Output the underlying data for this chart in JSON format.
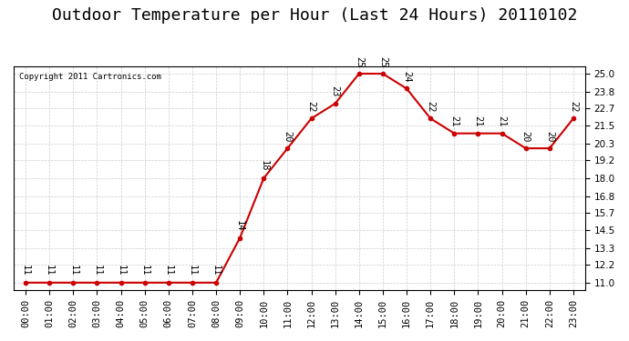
{
  "title": "Outdoor Temperature per Hour (Last 24 Hours) 20110102",
  "copyright_text": "Copyright 2011 Cartronics.com",
  "hours": [
    "00:00",
    "01:00",
    "02:00",
    "03:00",
    "04:00",
    "05:00",
    "06:00",
    "07:00",
    "08:00",
    "09:00",
    "10:00",
    "11:00",
    "12:00",
    "13:00",
    "14:00",
    "15:00",
    "16:00",
    "17:00",
    "18:00",
    "19:00",
    "20:00",
    "21:00",
    "22:00",
    "23:00"
  ],
  "temperatures": [
    11,
    11,
    11,
    11,
    11,
    11,
    11,
    11,
    11,
    14,
    18,
    20,
    22,
    23,
    25,
    25,
    24,
    22,
    21,
    21,
    21,
    20,
    20,
    22
  ],
  "line_color": "#cc0000",
  "marker_color": "#000000",
  "background_color": "#ffffff",
  "plot_bg_color": "#ffffff",
  "grid_color": "#cccccc",
  "yticks": [
    11.0,
    12.2,
    13.3,
    14.5,
    15.7,
    16.8,
    18.0,
    19.2,
    20.3,
    21.5,
    22.7,
    23.8,
    25.0
  ],
  "title_fontsize": 13,
  "annotation_fontsize": 7.5,
  "tick_fontsize": 7.5,
  "ylim_min": 10.5,
  "ylim_max": 25.5
}
